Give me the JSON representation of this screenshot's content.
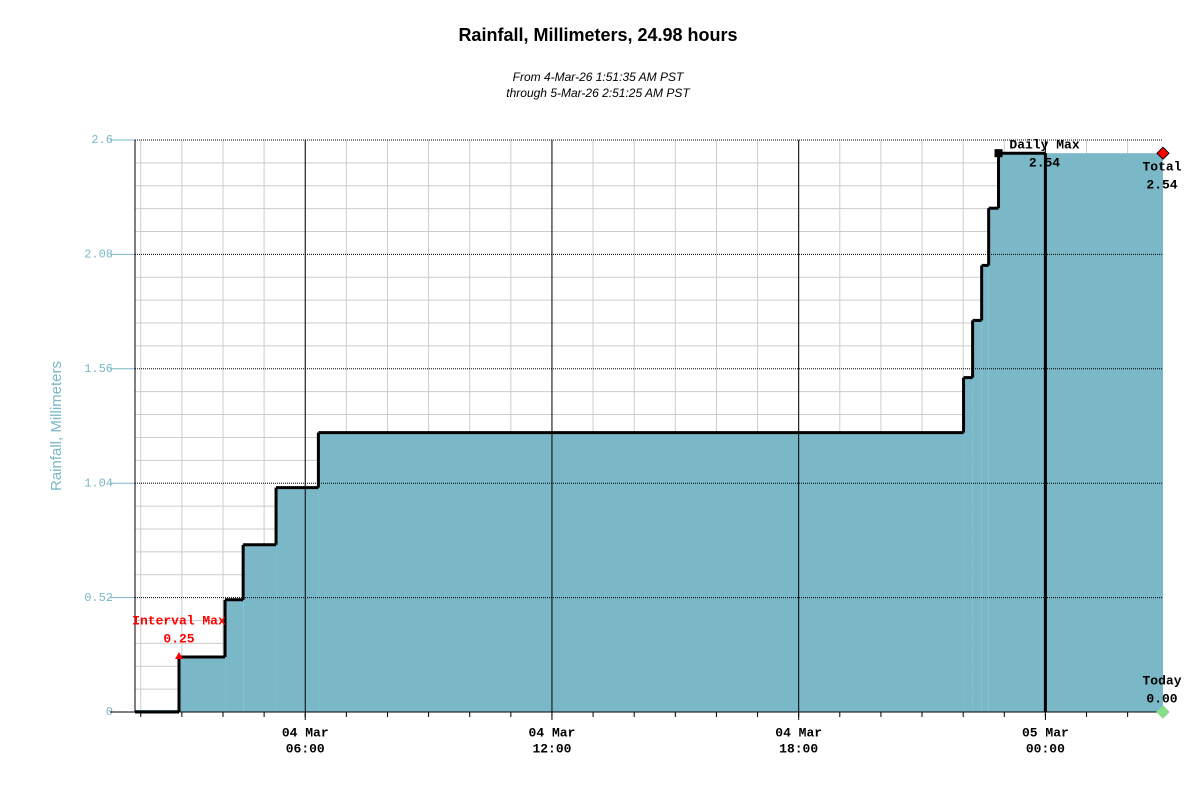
{
  "chart_data": {
    "type": "step",
    "title": "Rainfall, Millimeters, 24.98 hours",
    "subtitle": [
      "From 4-Mar-26 1:51:35 AM PST",
      "through 5-Mar-26 2:51:25 AM PST"
    ],
    "y_label": "Rainfall, Millimeters",
    "xlim": [
      1.86,
      26.86
    ],
    "xticks": [
      {
        "value": 6,
        "label": [
          "04 Mar",
          "06:00"
        ]
      },
      {
        "value": 12,
        "label": [
          "04 Mar",
          "12:00"
        ]
      },
      {
        "value": 18,
        "label": [
          "04 Mar",
          "18:00"
        ]
      },
      {
        "value": 24,
        "label": [
          "05 Mar",
          "00:00"
        ]
      }
    ],
    "ylim": [
      0,
      2.6
    ],
    "yticks": [
      0,
      0.52,
      1.04,
      1.56,
      2.08,
      2.6
    ],
    "minor_per_major": 5,
    "grid": true,
    "series": [
      {
        "color": "#7ab8c8",
        "fill": true,
        "x": [
          1.86,
          2.93,
          4.05,
          4.49,
          5.29,
          6.32,
          22.01,
          22.23,
          22.45,
          22.62,
          22.86,
          26.86
        ],
        "values": [
          0,
          0.25,
          0.51,
          0.76,
          1.02,
          1.27,
          1.52,
          1.78,
          2.03,
          2.29,
          2.54,
          2.54
        ]
      },
      {
        "color": "#000000",
        "fill": false,
        "x": [
          1.86,
          2.93,
          4.05,
          4.49,
          5.29,
          6.32,
          22.01,
          22.23,
          22.45,
          22.62,
          22.86,
          24
        ],
        "values": [
          0,
          0.25,
          0.51,
          0.76,
          1.02,
          1.27,
          1.52,
          1.78,
          2.03,
          2.29,
          2.54,
          0
        ]
      }
    ],
    "annotations": [
      {
        "label": "Interval Max",
        "x": 2.93,
        "value": 0.25,
        "color": "#ff0000",
        "marker": "triangle"
      },
      {
        "label": "Daily Max",
        "x": 22.86,
        "value": 2.54,
        "color": "#000000",
        "marker": "square"
      },
      {
        "label": "Total",
        "x": 26.86,
        "value": 2.54,
        "color": "#ff0000",
        "marker": "diamond"
      },
      {
        "label": "Today",
        "x": 26.86,
        "value": 0,
        "value_label": "0.00",
        "color": "#88dd88",
        "marker": "diamond"
      }
    ]
  }
}
